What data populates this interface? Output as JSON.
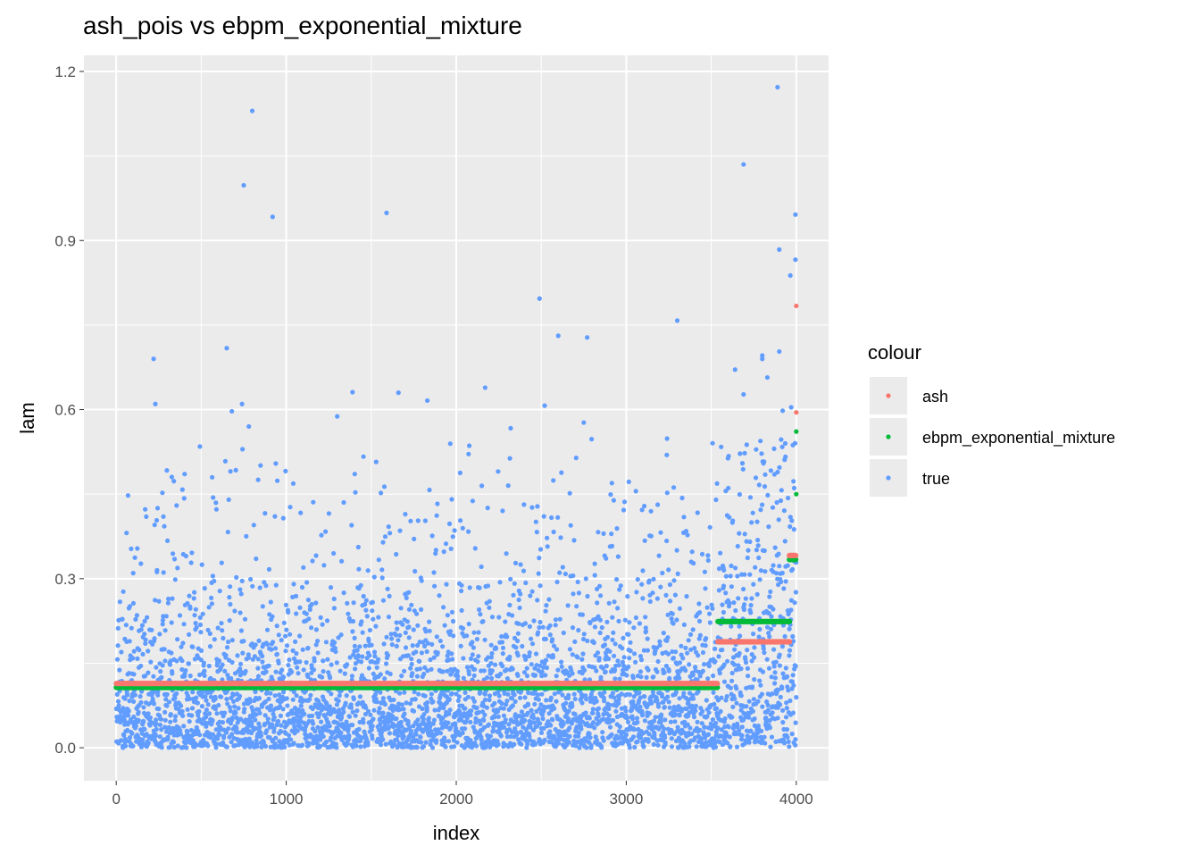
{
  "chart_data": {
    "type": "scatter",
    "title": "ash_pois vs ebpm_exponential_mixture",
    "xlabel": "index",
    "ylabel": "lam",
    "xlim": [
      -190,
      4190
    ],
    "ylim": [
      -0.0585,
      1.2285
    ],
    "x_ticks": [
      0,
      1000,
      2000,
      3000,
      4000
    ],
    "x_tick_labels": [
      "0",
      "1000",
      "2000",
      "3000",
      "4000"
    ],
    "y_ticks": [
      0.0,
      0.3,
      0.6,
      0.9,
      1.2
    ],
    "y_tick_labels": [
      "0.0",
      "0.3",
      "0.6",
      "0.9",
      "1.2"
    ],
    "grid": true,
    "legend": {
      "title": "colour",
      "position": "right",
      "entries": [
        {
          "label": "ash",
          "color": "#F8766D"
        },
        {
          "label": "ebpm_exponential_mixture",
          "color": "#00BA38"
        },
        {
          "label": "true",
          "color": "#619CFF"
        }
      ]
    },
    "series": [
      {
        "name": "ash",
        "color": "#F8766D",
        "segments": [
          {
            "x_start": 1,
            "x_end": 3540,
            "y": 0.114
          },
          {
            "x_start": 3540,
            "x_end": 3960,
            "y": 0.188
          },
          {
            "x_start": 3960,
            "x_end": 4000,
            "y": 0.341
          }
        ],
        "points": [
          {
            "x": 4000,
            "y": 0.784
          },
          {
            "x": 4000,
            "y": 0.595
          }
        ]
      },
      {
        "name": "ebpm_exponential_mixture",
        "color": "#00BA38",
        "segments": [
          {
            "x_start": 1,
            "x_end": 3540,
            "y": 0.107
          },
          {
            "x_start": 3540,
            "x_end": 3960,
            "y": 0.224
          },
          {
            "x_start": 3960,
            "x_end": 4000,
            "y": 0.334
          }
        ],
        "points": [
          {
            "x": 4000,
            "y": 0.561
          },
          {
            "x": 4000,
            "y": 0.45
          }
        ]
      },
      {
        "name": "true",
        "color": "#619CFF",
        "n_points": 4000,
        "notable_points": [
          {
            "x": 3890,
            "y": 1.172
          },
          {
            "x": 800,
            "y": 1.13
          },
          {
            "x": 3690,
            "y": 1.035
          },
          {
            "x": 750,
            "y": 0.998
          },
          {
            "x": 1590,
            "y": 0.949
          },
          {
            "x": 3995,
            "y": 0.946
          },
          {
            "x": 920,
            "y": 0.942
          },
          {
            "x": 3900,
            "y": 0.884
          },
          {
            "x": 3995,
            "y": 0.866
          },
          {
            "x": 3965,
            "y": 0.838
          },
          {
            "x": 2490,
            "y": 0.797
          },
          {
            "x": 3300,
            "y": 0.758
          },
          {
            "x": 2600,
            "y": 0.731
          },
          {
            "x": 2770,
            "y": 0.728
          },
          {
            "x": 650,
            "y": 0.709
          },
          {
            "x": 3900,
            "y": 0.703
          },
          {
            "x": 3800,
            "y": 0.696
          },
          {
            "x": 220,
            "y": 0.69
          },
          {
            "x": 3800,
            "y": 0.69
          },
          {
            "x": 3640,
            "y": 0.671
          },
          {
            "x": 3830,
            "y": 0.657
          },
          {
            "x": 2170,
            "y": 0.639
          },
          {
            "x": 1390,
            "y": 0.631
          },
          {
            "x": 1660,
            "y": 0.63
          },
          {
            "x": 3690,
            "y": 0.627
          },
          {
            "x": 1830,
            "y": 0.616
          },
          {
            "x": 230,
            "y": 0.61
          },
          {
            "x": 740,
            "y": 0.61
          },
          {
            "x": 2520,
            "y": 0.607
          },
          {
            "x": 3970,
            "y": 0.604
          },
          {
            "x": 3920,
            "y": 0.598
          },
          {
            "x": 680,
            "y": 0.597
          },
          {
            "x": 1300,
            "y": 0.588
          },
          {
            "x": 2750,
            "y": 0.577
          },
          {
            "x": 780,
            "y": 0.57
          },
          {
            "x": 2320,
            "y": 0.567
          }
        ]
      }
    ]
  }
}
